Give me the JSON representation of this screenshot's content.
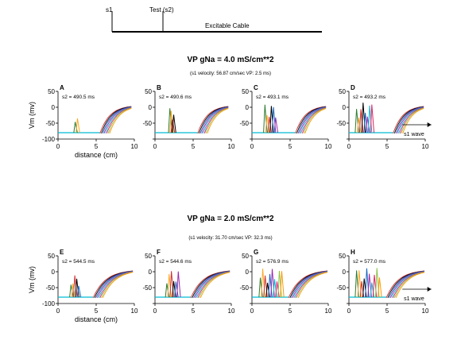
{
  "header": {
    "s1_label": "s1",
    "test_label": "Test (s2)",
    "cable_label": "Excitable Cable"
  },
  "rows": [
    {
      "title": "VP  gNa = 4.0 mS/cm**2",
      "subtitle": "(s1 velocity: 56.87 cm/sec VP: 2.5 ms)"
    },
    {
      "title": "VP  gNa = 2.0 mS/cm**2",
      "subtitle": "(s1 velocity: 31.70 cm/sec VP: 32.3 ms)"
    }
  ],
  "annotations": {
    "arrow_label": "s1 wave"
  },
  "colors": {
    "traces": [
      "#2e7d32",
      "#f9a825",
      "#d32f2f",
      "#000000",
      "#1565c0",
      "#9c27b0",
      "#00bcd4",
      "#e91e63",
      "#8bc34a",
      "#ff9800"
    ]
  },
  "chart_data": [
    {
      "type": "line",
      "panel_label": "A",
      "s2_label": "s2 = 490.5 ms",
      "ylabel": "Vm (mv)",
      "xlabel": "distance (cm)",
      "xlim": [
        0,
        10
      ],
      "ylim": [
        -100,
        50
      ],
      "x_ticks": [
        "0",
        "5",
        "10"
      ],
      "y_ticks": [
        "50",
        "0",
        "-50",
        "-100"
      ],
      "spike": {
        "x": 2.4,
        "width": 0.3,
        "height": 45,
        "count": 2
      },
      "recovery_front": {
        "x_start": 5.5,
        "x_end": 9.6
      },
      "arrow": false
    },
    {
      "type": "line",
      "panel_label": "B",
      "s2_label": "s2 = 490.6 ms",
      "ylabel": "",
      "xlabel": "",
      "xlim": [
        0,
        10
      ],
      "ylim": [
        -100,
        50
      ],
      "x_ticks": [
        "0",
        "5",
        "10"
      ],
      "y_ticks": [
        "50",
        "0",
        "-50",
        "-100"
      ],
      "spike": {
        "x": 2.2,
        "width": 0.5,
        "height": 80,
        "count": 4
      },
      "recovery_front": {
        "x_start": 5.6,
        "x_end": 9.6
      },
      "arrow": false
    },
    {
      "type": "line",
      "panel_label": "C",
      "s2_label": "s2 = 493.1 ms",
      "ylabel": "",
      "xlabel": "",
      "xlim": [
        0,
        10
      ],
      "ylim": [
        -100,
        50
      ],
      "x_ticks": [
        "0",
        "5",
        "10"
      ],
      "y_ticks": [
        "50",
        "0",
        "-50",
        "-100"
      ],
      "spike": {
        "x": 2.4,
        "width": 1.4,
        "height": 90,
        "count": 6
      },
      "recovery_front": {
        "x_start": 5.7,
        "x_end": 9.7
      },
      "arrow": false
    },
    {
      "type": "line",
      "panel_label": "D",
      "s2_label": "s2 = 493.2 ms",
      "ylabel": "",
      "xlabel": "",
      "xlim": [
        0,
        10
      ],
      "ylim": [
        -100,
        50
      ],
      "x_ticks": [
        "0",
        "5",
        "10"
      ],
      "y_ticks": [
        "50",
        "0",
        "-50",
        "-100"
      ],
      "spike": {
        "x": 2.0,
        "width": 2.0,
        "height": 95,
        "count": 8
      },
      "recovery_front": {
        "x_start": 5.8,
        "x_end": 9.8
      },
      "arrow": true
    },
    {
      "type": "line",
      "panel_label": "E",
      "s2_label": "s2 = 544.5 ms",
      "ylabel": "Vm (mv)",
      "xlabel": "distance (cm)",
      "xlim": [
        0,
        10
      ],
      "ylim": [
        -100,
        50
      ],
      "x_ticks": [
        "0",
        "5",
        "10"
      ],
      "y_ticks": [
        "50",
        "0",
        "-50",
        "-100"
      ],
      "spike": {
        "x": 2.2,
        "width": 1.0,
        "height": 70,
        "count": 5
      },
      "recovery_front": {
        "x_start": 4.6,
        "x_end": 9.8
      },
      "arrow": false
    },
    {
      "type": "line",
      "panel_label": "F",
      "s2_label": "s2 = 544.6 ms",
      "ylabel": "",
      "xlabel": "",
      "xlim": [
        0,
        10
      ],
      "ylim": [
        -100,
        50
      ],
      "x_ticks": [
        "0",
        "5",
        "10"
      ],
      "y_ticks": [
        "50",
        "0",
        "-50",
        "-100"
      ],
      "spike": {
        "x": 2.3,
        "width": 1.5,
        "height": 85,
        "count": 6
      },
      "recovery_front": {
        "x_start": 4.7,
        "x_end": 9.8
      },
      "arrow": false
    },
    {
      "type": "line",
      "panel_label": "G",
      "s2_label": "s2 = 576.9 ms",
      "ylabel": "",
      "xlabel": "",
      "xlim": [
        0,
        10
      ],
      "ylim": [
        -100,
        50
      ],
      "x_ticks": [
        "0",
        "5",
        "10"
      ],
      "y_ticks": [
        "50",
        "0",
        "-50",
        "-100"
      ],
      "spike": {
        "x": 2.5,
        "width": 2.8,
        "height": 90,
        "count": 10
      },
      "recovery_front": {
        "x_start": 4.8,
        "x_end": 9.9
      },
      "arrow": false
    },
    {
      "type": "line",
      "panel_label": "H",
      "s2_label": "s2 = 577.0 ms",
      "ylabel": "",
      "xlabel": "",
      "xlim": [
        0,
        10
      ],
      "ylim": [
        -100,
        50
      ],
      "x_ticks": [
        "0",
        "5",
        "10"
      ],
      "y_ticks": [
        "50",
        "0",
        "-50",
        "-100"
      ],
      "spike": {
        "x": 2.5,
        "width": 3.0,
        "height": 92,
        "count": 10
      },
      "recovery_front": {
        "x_start": 4.9,
        "x_end": 9.9
      },
      "arrow": true
    }
  ]
}
